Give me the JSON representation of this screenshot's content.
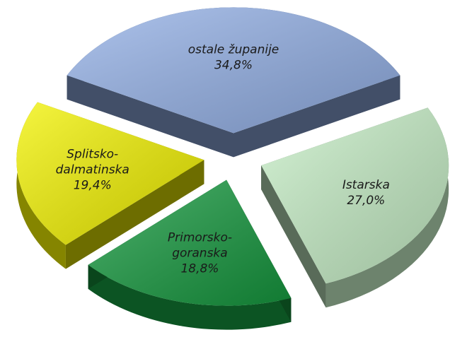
{
  "chart_data": {
    "type": "pie",
    "categories": [
      "ostale županije",
      "Istarska",
      "Primorsko-goranska",
      "Splitsko-dalmatinska"
    ],
    "values": [
      34.8,
      27.0,
      18.8,
      19.4
    ],
    "value_labels": [
      "34,8%",
      "27,0%",
      "18,8%",
      "19,4%"
    ],
    "colors": [
      "#93b0e6",
      "#c6eec6",
      "#16993f",
      "#f2f200"
    ]
  }
}
